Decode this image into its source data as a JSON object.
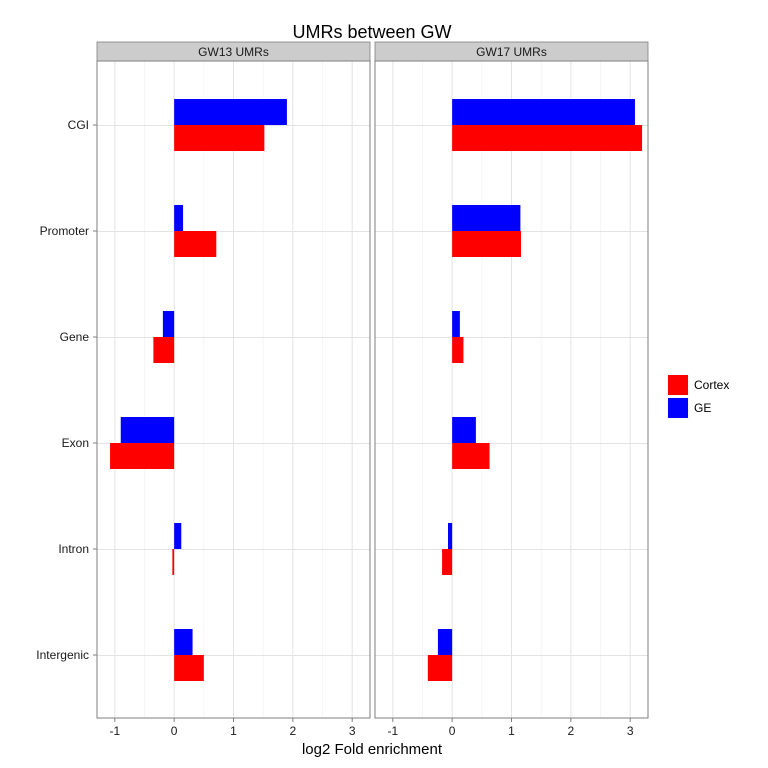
{
  "chart_data": {
    "type": "bar",
    "orientation": "horizontal",
    "title": "UMRs between GW",
    "xlabel": "log2 Fold enrichment",
    "ylabel": "",
    "xlim": [
      -1.3,
      3.3
    ],
    "xticks": [
      -1,
      0,
      1,
      2,
      3
    ],
    "xtick_labels": [
      "-1",
      "0",
      "1",
      "2",
      "3"
    ],
    "categories": [
      "CGI",
      "Promoter",
      "Gene",
      "Exon",
      "Intron",
      "Intergenic"
    ],
    "legend": [
      "Cortex",
      "GE"
    ],
    "legend_position": "right",
    "grid": true,
    "panels": [
      {
        "strip": "GW13 UMRs",
        "series": [
          {
            "name": "GE",
            "color": "#0000ff",
            "values": [
              1.9,
              0.15,
              -0.19,
              -0.9,
              0.12,
              0.31
            ]
          },
          {
            "name": "Cortex",
            "color": "#ff0000",
            "values": [
              1.52,
              0.71,
              -0.35,
              -1.08,
              -0.03,
              0.5
            ]
          }
        ]
      },
      {
        "strip": "GW17 UMRs",
        "series": [
          {
            "name": "GE",
            "color": "#0000ff",
            "values": [
              3.08,
              1.15,
              0.13,
              0.4,
              -0.07,
              -0.24
            ]
          },
          {
            "name": "Cortex",
            "color": "#ff0000",
            "values": [
              3.2,
              1.16,
              0.19,
              0.63,
              -0.17,
              -0.41
            ]
          }
        ]
      }
    ]
  }
}
